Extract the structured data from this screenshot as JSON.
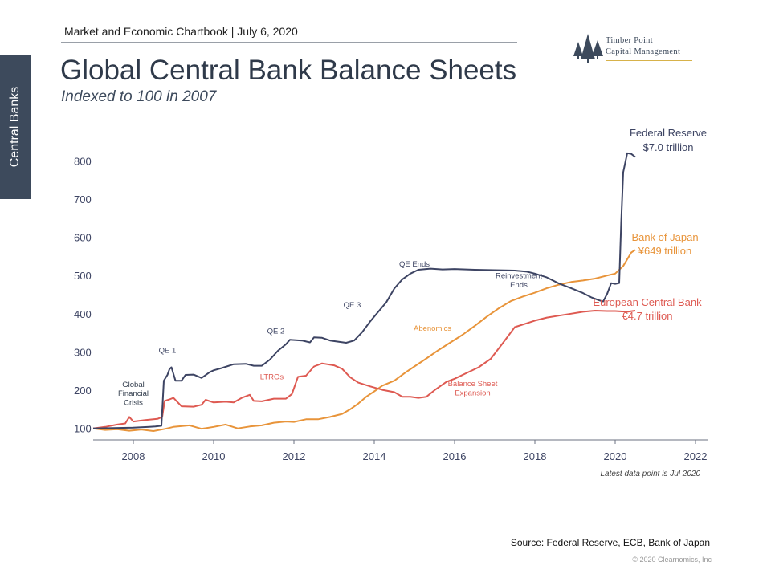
{
  "header": {
    "text": "Market and Economic Chartbook | July 6, 2020"
  },
  "side_tab": {
    "label": "Central Banks"
  },
  "title": "Global Central Bank Balance Sheets",
  "subtitle": "Indexed to 100 in 2007",
  "logo": {
    "line1": "Timber Point",
    "line2": "Capital Management",
    "icon": "pine-trees-icon"
  },
  "source": "Source: Federal Reserve, ECB, Bank of Japan",
  "copyright": "© 2020 Clearnomics, Inc",
  "colors": {
    "fed": "#3d4463",
    "boj": "#e8943a",
    "ecb": "#de5a52",
    "axis": "#3d4463",
    "text_dark": "#2f3a4a",
    "tab_bg": "#3d4a5c"
  },
  "chart_data": {
    "type": "line",
    "x_type": "year",
    "xlim": [
      2007,
      2022
    ],
    "ylim": [
      70,
      830
    ],
    "x_ticks": [
      2008,
      2010,
      2012,
      2014,
      2016,
      2018,
      2020,
      2022
    ],
    "y_ticks": [
      100,
      200,
      300,
      400,
      500,
      600,
      700,
      800
    ],
    "grid": false,
    "note": "Latest data point is Jul 2020",
    "series": [
      {
        "id": "fed",
        "name_line1": "Federal Reserve",
        "name_line2": "$7.0 trillion",
        "color": "#3d4463",
        "points": [
          [
            2007.0,
            100
          ],
          [
            2007.5,
            101
          ],
          [
            2008.0,
            102
          ],
          [
            2008.4,
            104
          ],
          [
            2008.55,
            105
          ],
          [
            2008.7,
            107
          ],
          [
            2008.76,
            225
          ],
          [
            2008.85,
            240
          ],
          [
            2008.9,
            255
          ],
          [
            2008.95,
            260
          ],
          [
            2009.05,
            225
          ],
          [
            2009.2,
            225
          ],
          [
            2009.3,
            240
          ],
          [
            2009.5,
            241
          ],
          [
            2009.7,
            232
          ],
          [
            2009.9,
            247
          ],
          [
            2010.0,
            252
          ],
          [
            2010.2,
            258
          ],
          [
            2010.5,
            268
          ],
          [
            2010.8,
            269
          ],
          [
            2011.0,
            264
          ],
          [
            2011.2,
            264
          ],
          [
            2011.4,
            280
          ],
          [
            2011.6,
            303
          ],
          [
            2011.8,
            320
          ],
          [
            2011.9,
            332
          ],
          [
            2012.2,
            330
          ],
          [
            2012.4,
            325
          ],
          [
            2012.5,
            338
          ],
          [
            2012.7,
            337
          ],
          [
            2012.9,
            330
          ],
          [
            2013.1,
            327
          ],
          [
            2013.3,
            324
          ],
          [
            2013.5,
            330
          ],
          [
            2013.7,
            352
          ],
          [
            2013.9,
            380
          ],
          [
            2014.1,
            405
          ],
          [
            2014.3,
            430
          ],
          [
            2014.5,
            466
          ],
          [
            2014.7,
            490
          ],
          [
            2014.9,
            505
          ],
          [
            2015.1,
            515
          ],
          [
            2015.4,
            518
          ],
          [
            2015.7,
            516
          ],
          [
            2016.0,
            517
          ],
          [
            2016.5,
            515
          ],
          [
            2017.0,
            514
          ],
          [
            2017.5,
            513
          ],
          [
            2017.8,
            510
          ],
          [
            2018.0,
            505
          ],
          [
            2018.3,
            495
          ],
          [
            2018.6,
            479
          ],
          [
            2018.9,
            467
          ],
          [
            2019.2,
            454
          ],
          [
            2019.4,
            443
          ],
          [
            2019.6,
            435
          ],
          [
            2019.7,
            432
          ],
          [
            2019.8,
            452
          ],
          [
            2019.9,
            480
          ],
          [
            2020.0,
            478
          ],
          [
            2020.1,
            480
          ],
          [
            2020.15,
            640
          ],
          [
            2020.2,
            770
          ],
          [
            2020.3,
            820
          ],
          [
            2020.4,
            818
          ],
          [
            2020.5,
            810
          ]
        ]
      },
      {
        "id": "boj",
        "name_line1": "Bank of Japan",
        "name_line2": "¥649 trillion",
        "color": "#e8943a",
        "points": [
          [
            2007.0,
            100
          ],
          [
            2007.3,
            96
          ],
          [
            2007.6,
            98
          ],
          [
            2007.9,
            94
          ],
          [
            2008.2,
            97
          ],
          [
            2008.5,
            93
          ],
          [
            2008.8,
            99
          ],
          [
            2009.0,
            104
          ],
          [
            2009.4,
            108
          ],
          [
            2009.7,
            99
          ],
          [
            2010.0,
            104
          ],
          [
            2010.3,
            110
          ],
          [
            2010.6,
            100
          ],
          [
            2010.9,
            105
          ],
          [
            2011.2,
            108
          ],
          [
            2011.5,
            115
          ],
          [
            2011.8,
            118
          ],
          [
            2012.0,
            117
          ],
          [
            2012.3,
            124
          ],
          [
            2012.6,
            124
          ],
          [
            2012.9,
            130
          ],
          [
            2013.2,
            138
          ],
          [
            2013.4,
            150
          ],
          [
            2013.6,
            165
          ],
          [
            2013.8,
            183
          ],
          [
            2014.0,
            197
          ],
          [
            2014.2,
            212
          ],
          [
            2014.5,
            225
          ],
          [
            2014.8,
            248
          ],
          [
            2015.0,
            262
          ],
          [
            2015.3,
            283
          ],
          [
            2015.6,
            305
          ],
          [
            2015.9,
            325
          ],
          [
            2016.2,
            345
          ],
          [
            2016.5,
            368
          ],
          [
            2016.8,
            392
          ],
          [
            2017.1,
            414
          ],
          [
            2017.4,
            433
          ],
          [
            2017.7,
            445
          ],
          [
            2018.0,
            455
          ],
          [
            2018.3,
            467
          ],
          [
            2018.6,
            476
          ],
          [
            2018.9,
            483
          ],
          [
            2019.2,
            487
          ],
          [
            2019.5,
            492
          ],
          [
            2019.8,
            500
          ],
          [
            2020.0,
            505
          ],
          [
            2020.2,
            525
          ],
          [
            2020.4,
            560
          ],
          [
            2020.5,
            567
          ]
        ]
      },
      {
        "id": "ecb",
        "name_line1": "European Central Bank",
        "name_line2": "€4.7 trillion",
        "color": "#de5a52",
        "points": [
          [
            2007.0,
            100
          ],
          [
            2007.3,
            104
          ],
          [
            2007.6,
            110
          ],
          [
            2007.8,
            113
          ],
          [
            2007.9,
            130
          ],
          [
            2008.0,
            118
          ],
          [
            2008.3,
            122
          ],
          [
            2008.6,
            125
          ],
          [
            2008.72,
            130
          ],
          [
            2008.78,
            172
          ],
          [
            2008.9,
            176
          ],
          [
            2009.0,
            180
          ],
          [
            2009.2,
            158
          ],
          [
            2009.5,
            157
          ],
          [
            2009.7,
            162
          ],
          [
            2009.8,
            175
          ],
          [
            2010.0,
            168
          ],
          [
            2010.3,
            170
          ],
          [
            2010.5,
            168
          ],
          [
            2010.7,
            180
          ],
          [
            2010.9,
            188
          ],
          [
            2011.0,
            172
          ],
          [
            2011.2,
            171
          ],
          [
            2011.5,
            178
          ],
          [
            2011.8,
            178
          ],
          [
            2011.95,
            190
          ],
          [
            2012.1,
            235
          ],
          [
            2012.3,
            238
          ],
          [
            2012.5,
            262
          ],
          [
            2012.7,
            270
          ],
          [
            2013.0,
            265
          ],
          [
            2013.2,
            256
          ],
          [
            2013.4,
            234
          ],
          [
            2013.6,
            220
          ],
          [
            2013.9,
            210
          ],
          [
            2014.2,
            201
          ],
          [
            2014.5,
            195
          ],
          [
            2014.7,
            183
          ],
          [
            2014.9,
            183
          ],
          [
            2015.1,
            180
          ],
          [
            2015.3,
            183
          ],
          [
            2015.5,
            200
          ],
          [
            2015.8,
            222
          ],
          [
            2016.0,
            230
          ],
          [
            2016.3,
            245
          ],
          [
            2016.6,
            260
          ],
          [
            2016.9,
            282
          ],
          [
            2017.2,
            323
          ],
          [
            2017.5,
            365
          ],
          [
            2017.8,
            375
          ],
          [
            2018.0,
            382
          ],
          [
            2018.3,
            390
          ],
          [
            2018.6,
            395
          ],
          [
            2018.9,
            400
          ],
          [
            2019.2,
            405
          ],
          [
            2019.5,
            408
          ],
          [
            2019.8,
            407
          ],
          [
            2020.0,
            407
          ],
          [
            2020.3,
            405
          ],
          [
            2020.5,
            408
          ]
        ]
      }
    ],
    "annotations": [
      {
        "text": "Global",
        "x": 2008.0,
        "y": 209,
        "color": "#2f3a4a"
      },
      {
        "text": "Financial",
        "x": 2008.0,
        "y": 185,
        "color": "#2f3a4a"
      },
      {
        "text": "Crisis",
        "x": 2008.0,
        "y": 161,
        "color": "#2f3a4a"
      },
      {
        "text": "QE 1",
        "x": 2008.85,
        "y": 298,
        "color": "#3d4463"
      },
      {
        "text": "QE 2",
        "x": 2011.55,
        "y": 348,
        "color": "#3d4463"
      },
      {
        "text": "QE 3",
        "x": 2013.45,
        "y": 416,
        "color": "#3d4463"
      },
      {
        "text": "QE Ends",
        "x": 2015.0,
        "y": 523,
        "color": "#3d4463"
      },
      {
        "text": "Reinvestment",
        "x": 2017.6,
        "y": 493,
        "color": "#3d4463"
      },
      {
        "text": "Ends",
        "x": 2017.6,
        "y": 469,
        "color": "#3d4463"
      },
      {
        "text": "LTROs",
        "x": 2011.45,
        "y": 229,
        "color": "#de5a52"
      },
      {
        "text": "Abenomics",
        "x": 2015.45,
        "y": 356,
        "color": "#e8943a"
      },
      {
        "text": "Balance Sheet",
        "x": 2016.45,
        "y": 211,
        "color": "#de5a52"
      },
      {
        "text": "Expansion",
        "x": 2016.45,
        "y": 187,
        "color": "#de5a52"
      }
    ]
  }
}
